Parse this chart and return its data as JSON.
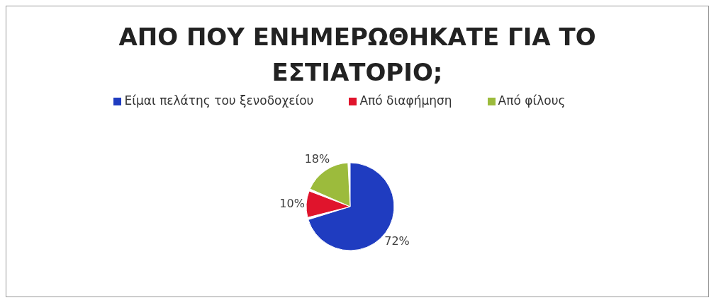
{
  "chart_data": {
    "type": "pie",
    "title": "ΑΠΟ ΠΟΥ ΕΝΗΜΕΡΩΘΗΚΑΤΕ ΓΙΑ ΤΟ ΕΣΤΙΑΤΟΡΙΟ;",
    "categories": [
      "Είμαι πελάτης του ξενοδοχείου",
      "Από διαφήμηση",
      "Από φίλους"
    ],
    "values": [
      72,
      10,
      18
    ],
    "colors": [
      "#1f3cc0",
      "#e0142c",
      "#9cbb3c"
    ],
    "value_labels": [
      "72%",
      "10%",
      "18%"
    ],
    "legend": "top"
  }
}
